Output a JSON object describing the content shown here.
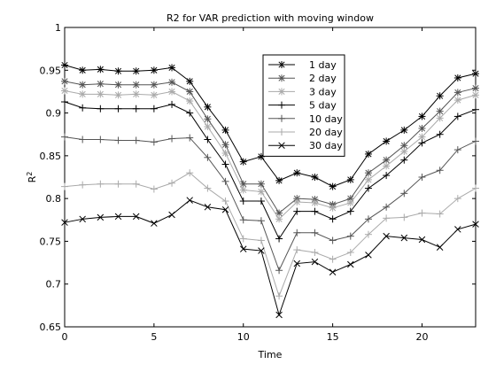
{
  "chart_data": {
    "type": "line",
    "title": "R2 for VAR prediction with moving window",
    "xlabel": "Time",
    "ylabel": "R",
    "ylabel_superscript": "2",
    "xlim": [
      0,
      23
    ],
    "ylim": [
      0.65,
      1
    ],
    "xticks": [
      0,
      5,
      10,
      15,
      20
    ],
    "yticks": [
      0.65,
      0.7,
      0.75,
      0.8,
      0.85,
      0.9,
      0.95,
      1
    ],
    "ytick_labels": [
      "0.65",
      "0.7",
      "0.75",
      "0.8",
      "0.85",
      "0.9",
      "0.95",
      "1"
    ],
    "grid": false,
    "legend_position": "top-right",
    "x": [
      0,
      1,
      2,
      3,
      4,
      5,
      6,
      7,
      8,
      9,
      10,
      11,
      12,
      13,
      14,
      15,
      16,
      17,
      18,
      19,
      20,
      21,
      22,
      23
    ],
    "series": [
      {
        "name": "1 day",
        "color": "#000000",
        "marker": "asterisk",
        "values": [
          0.956,
          0.95,
          0.951,
          0.949,
          0.949,
          0.95,
          0.953,
          0.937,
          0.907,
          0.88,
          0.843,
          0.849,
          0.821,
          0.83,
          0.825,
          0.814,
          0.822,
          0.852,
          0.867,
          0.88,
          0.896,
          0.92,
          0.941,
          0.946
        ]
      },
      {
        "name": "2 day",
        "color": "#555555",
        "marker": "asterisk",
        "values": [
          0.937,
          0.933,
          0.934,
          0.933,
          0.933,
          0.933,
          0.936,
          0.925,
          0.893,
          0.863,
          0.817,
          0.817,
          0.783,
          0.8,
          0.799,
          0.793,
          0.8,
          0.83,
          0.845,
          0.862,
          0.882,
          0.902,
          0.924,
          0.929
        ]
      },
      {
        "name": "3 day",
        "color": "#aaaaaa",
        "marker": "asterisk",
        "values": [
          0.926,
          0.922,
          0.922,
          0.921,
          0.922,
          0.921,
          0.925,
          0.914,
          0.884,
          0.853,
          0.81,
          0.808,
          0.776,
          0.796,
          0.795,
          0.789,
          0.795,
          0.822,
          0.838,
          0.855,
          0.872,
          0.894,
          0.915,
          0.921
        ]
      },
      {
        "name": "5 day",
        "color": "#000000",
        "marker": "plus",
        "values": [
          0.913,
          0.906,
          0.905,
          0.905,
          0.905,
          0.905,
          0.91,
          0.9,
          0.869,
          0.84,
          0.797,
          0.797,
          0.753,
          0.785,
          0.785,
          0.776,
          0.785,
          0.812,
          0.827,
          0.845,
          0.865,
          0.875,
          0.896,
          0.904
        ]
      },
      {
        "name": "10 day",
        "color": "#555555",
        "marker": "plus",
        "values": [
          0.872,
          0.869,
          0.869,
          0.868,
          0.868,
          0.866,
          0.87,
          0.871,
          0.848,
          0.82,
          0.775,
          0.774,
          0.716,
          0.76,
          0.76,
          0.751,
          0.756,
          0.776,
          0.79,
          0.806,
          0.825,
          0.833,
          0.857,
          0.867
        ]
      },
      {
        "name": "20 day",
        "color": "#aaaaaa",
        "marker": "plus",
        "values": [
          0.814,
          0.816,
          0.817,
          0.817,
          0.817,
          0.811,
          0.818,
          0.83,
          0.812,
          0.797,
          0.753,
          0.751,
          0.686,
          0.74,
          0.737,
          0.729,
          0.737,
          0.758,
          0.777,
          0.778,
          0.783,
          0.782,
          0.8,
          0.812
        ]
      },
      {
        "name": "30 day",
        "color": "#000000",
        "marker": "cross",
        "values": [
          0.772,
          0.776,
          0.778,
          0.779,
          0.779,
          0.771,
          0.781,
          0.798,
          0.79,
          0.787,
          0.741,
          0.739,
          0.664,
          0.724,
          0.726,
          0.714,
          0.723,
          0.734,
          0.756,
          0.754,
          0.752,
          0.743,
          0.764,
          0.77
        ]
      }
    ]
  }
}
